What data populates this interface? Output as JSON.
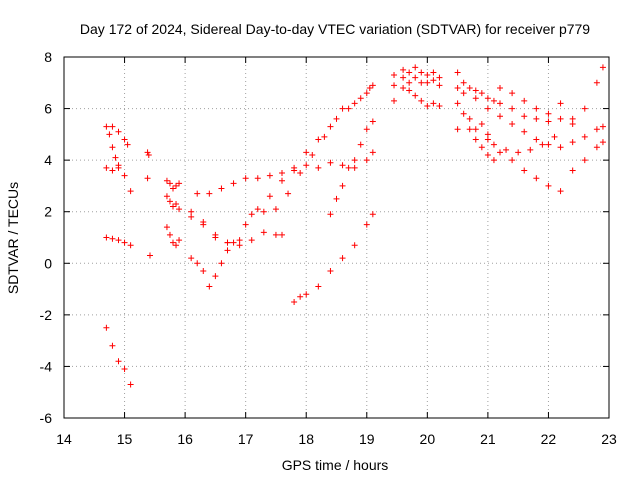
{
  "chart_data": {
    "type": "scatter",
    "title": "Day 172 of 2024, Sidereal Day-to-day VTEC variation (SDTVAR) for receiver p779",
    "xlabel": "GPS time / hours",
    "ylabel": "SDTVAR / TECUs",
    "xlim": [
      14,
      23
    ],
    "ylim": [
      -6,
      8
    ],
    "xticks": [
      "14",
      "15",
      "16",
      "17",
      "18",
      "19",
      "20",
      "21",
      "22",
      "23"
    ],
    "yticks": [
      "-6",
      "-4",
      "-2",
      "0",
      "2",
      "4",
      "6",
      "8"
    ],
    "grid": true,
    "marker": "+",
    "color": "#ff0000",
    "series": [
      {
        "x": [
          14.7,
          14.8,
          14.9,
          15.0,
          15.05
        ],
        "y": [
          5.3,
          5.3,
          5.1,
          4.8,
          4.6
        ]
      },
      {
        "x": [
          14.7,
          14.8,
          14.9,
          15.0,
          15.1
        ],
        "y": [
          3.7,
          3.6,
          3.7,
          3.4,
          2.8
        ]
      },
      {
        "x": [
          14.7,
          14.8,
          14.9,
          15.0,
          15.1
        ],
        "y": [
          1.0,
          0.95,
          0.9,
          0.8,
          0.7
        ]
      },
      {
        "x": [
          14.7,
          14.8,
          14.9,
          15.0,
          15.1
        ],
        "y": [
          -2.5,
          -3.2,
          -3.8,
          -4.1,
          -4.7
        ]
      },
      {
        "x": [
          14.75,
          14.8,
          14.85,
          14.9
        ],
        "y": [
          5.0,
          4.5,
          4.1,
          3.8
        ]
      },
      {
        "x": [
          15.38,
          15.4,
          15.38,
          15.42
        ],
        "y": [
          4.3,
          4.2,
          3.3,
          0.3
        ]
      },
      {
        "x": [
          15.7,
          15.75,
          15.8,
          15.85,
          15.9
        ],
        "y": [
          3.2,
          3.1,
          2.9,
          3.0,
          3.1
        ]
      },
      {
        "x": [
          15.7,
          15.75,
          15.8,
          15.85,
          15.9
        ],
        "y": [
          2.6,
          2.4,
          2.2,
          2.3,
          2.1
        ]
      },
      {
        "x": [
          15.7,
          15.75,
          15.8,
          15.85,
          15.9
        ],
        "y": [
          1.4,
          1.1,
          0.8,
          0.7,
          0.9
        ]
      },
      {
        "x": [
          16.2,
          16.4,
          16.6,
          16.8,
          17.0,
          17.2,
          17.4,
          17.6,
          17.8,
          18.0,
          18.2,
          18.4,
          18.6,
          18.8,
          19.0,
          19.1
        ],
        "y": [
          2.7,
          2.7,
          2.9,
          3.1,
          3.3,
          3.3,
          3.4,
          3.5,
          3.7,
          3.8,
          3.7,
          3.9,
          3.8,
          3.7,
          4.0,
          4.3
        ]
      },
      {
        "x": [
          16.1,
          16.3,
          16.5,
          16.7,
          16.9,
          17.1,
          17.3,
          17.5,
          17.6
        ],
        "y": [
          1.8,
          1.5,
          1.1,
          0.8,
          0.7,
          0.9,
          1.2,
          1.1,
          1.1
        ]
      },
      {
        "x": [
          16.1,
          16.2,
          16.3,
          16.4,
          16.5,
          16.6,
          16.7,
          16.8,
          17.0,
          17.2,
          17.4,
          17.6,
          17.8,
          18.0,
          18.2,
          18.4,
          18.6,
          18.8,
          19.0,
          19.1
        ],
        "y": [
          0.2,
          0.0,
          -0.3,
          -0.9,
          -0.5,
          0.0,
          0.5,
          0.8,
          1.5,
          2.1,
          2.6,
          3.2,
          3.6,
          4.3,
          4.8,
          5.3,
          6.0,
          6.2,
          6.6,
          6.9
        ]
      },
      {
        "x": [
          16.1,
          16.3,
          16.5,
          16.7,
          16.9,
          17.1,
          17.3,
          17.5,
          17.7,
          17.9,
          18.1,
          18.3,
          18.5,
          18.7,
          18.9,
          19.05
        ],
        "y": [
          2.0,
          1.6,
          1.0,
          0.8,
          0.9,
          1.9,
          2.0,
          2.1,
          2.7,
          3.5,
          4.2,
          4.9,
          5.6,
          6.0,
          6.4,
          6.8
        ]
      },
      {
        "x": [
          17.8,
          17.9,
          18.0,
          18.2,
          18.4,
          18.6,
          18.8,
          19.0,
          19.1
        ],
        "y": [
          -1.5,
          -1.3,
          -1.2,
          -0.9,
          -0.3,
          0.2,
          0.7,
          1.5,
          1.9
        ]
      },
      {
        "x": [
          18.4,
          18.5,
          18.6,
          18.7,
          18.8,
          18.9,
          19.0,
          19.1
        ],
        "y": [
          1.9,
          2.5,
          3.0,
          3.7,
          4.0,
          4.6,
          5.2,
          5.5
        ]
      },
      {
        "x": [
          19.45,
          19.6,
          19.7,
          19.8,
          19.9,
          20.0,
          20.1,
          20.2
        ],
        "y": [
          7.3,
          7.5,
          7.4,
          7.6,
          7.4,
          7.3,
          7.4,
          7.2
        ]
      },
      {
        "x": [
          19.45,
          19.6,
          19.7,
          19.8,
          19.9,
          20.0,
          20.1,
          20.2
        ],
        "y": [
          6.9,
          7.2,
          7.0,
          7.2,
          7.0,
          7.0,
          7.1,
          6.9
        ]
      },
      {
        "x": [
          19.45,
          19.6,
          19.7,
          19.8,
          19.9,
          20.0,
          20.1,
          20.2
        ],
        "y": [
          6.3,
          6.8,
          6.7,
          6.5,
          6.3,
          6.1,
          6.2,
          6.1
        ]
      },
      {
        "x": [
          20.5,
          20.6,
          20.7,
          20.8,
          20.9,
          21.0,
          21.1,
          21.2,
          21.4,
          21.6,
          21.8,
          22.0,
          22.2,
          22.4,
          22.6,
          22.8,
          22.9
        ],
        "y": [
          7.4,
          7.0,
          6.8,
          6.7,
          6.6,
          6.4,
          6.3,
          6.2,
          6.0,
          5.7,
          5.6,
          5.5,
          5.6,
          5.4,
          6.0,
          7.0,
          7.6
        ]
      },
      {
        "x": [
          20.5,
          20.6,
          20.8,
          21.0,
          21.2,
          21.4,
          21.6,
          21.8,
          22.0,
          22.2,
          22.4,
          22.6,
          22.8,
          22.9
        ],
        "y": [
          6.2,
          5.8,
          5.2,
          4.8,
          4.3,
          4.0,
          3.6,
          3.3,
          3.0,
          2.8,
          3.6,
          4.0,
          4.5,
          4.7
        ]
      },
      {
        "x": [
          20.5,
          20.6,
          20.8,
          21.0,
          21.2,
          21.4,
          21.6,
          21.8,
          22.0,
          22.2,
          22.4,
          22.6,
          22.8,
          22.9
        ],
        "y": [
          6.8,
          6.6,
          6.4,
          6.0,
          5.7,
          5.4,
          5.1,
          4.8,
          4.6,
          4.5,
          4.7,
          4.9,
          5.2,
          5.3
        ]
      },
      {
        "x": [
          20.7,
          20.8,
          20.9,
          21.0,
          21.1,
          21.2,
          21.4,
          21.6,
          21.8,
          22.0,
          22.2,
          22.4
        ],
        "y": [
          5.2,
          4.8,
          4.5,
          4.2,
          4.0,
          6.8,
          6.6,
          6.3,
          6.0,
          5.8,
          6.2,
          5.6
        ]
      },
      {
        "x": [
          20.5,
          20.7,
          20.9,
          21.0,
          21.1,
          21.3,
          21.5,
          21.7,
          21.9,
          22.1
        ],
        "y": [
          5.2,
          5.6,
          5.4,
          5.0,
          4.6,
          4.4,
          4.3,
          4.4,
          4.6,
          4.9
        ]
      }
    ]
  }
}
